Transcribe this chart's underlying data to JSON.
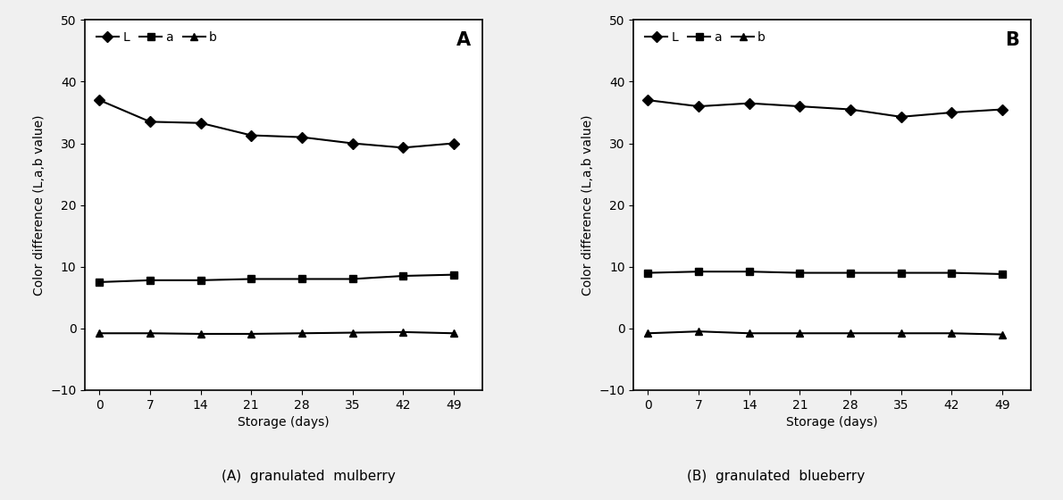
{
  "x": [
    0,
    7,
    14,
    21,
    28,
    35,
    42,
    49
  ],
  "chart_A": {
    "L": [
      37.0,
      33.5,
      33.3,
      31.3,
      31.0,
      30.0,
      29.3,
      30.0
    ],
    "a": [
      7.5,
      7.8,
      7.8,
      8.0,
      8.0,
      8.0,
      8.5,
      8.7
    ],
    "b": [
      -0.8,
      -0.8,
      -0.9,
      -0.9,
      -0.8,
      -0.7,
      -0.6,
      -0.8
    ]
  },
  "chart_B": {
    "L": [
      37.0,
      36.0,
      36.5,
      36.0,
      35.5,
      34.3,
      35.0,
      35.5
    ],
    "a": [
      9.0,
      9.2,
      9.2,
      9.0,
      9.0,
      9.0,
      9.0,
      8.8
    ],
    "b": [
      -0.8,
      -0.5,
      -0.8,
      -0.8,
      -0.8,
      -0.8,
      -0.8,
      -1.0
    ]
  },
  "label_A": "A",
  "label_B": "B",
  "xlabel": "Storage (days)",
  "ylabel": "Color difference (L,a,b value)",
  "ylim": [
    -10,
    50
  ],
  "yticks": [
    -10,
    0,
    10,
    20,
    30,
    40,
    50
  ],
  "xticks": [
    0,
    7,
    14,
    21,
    28,
    35,
    42,
    49
  ],
  "line_color": "#000000",
  "marker_L": "D",
  "marker_a": "s",
  "marker_b": "^",
  "caption_A": "(A)  granulated  mulberry",
  "caption_B": "(B)  granulated  blueberry",
  "linewidth": 1.5,
  "markersize": 6,
  "bg_color": "#f0f0f0"
}
